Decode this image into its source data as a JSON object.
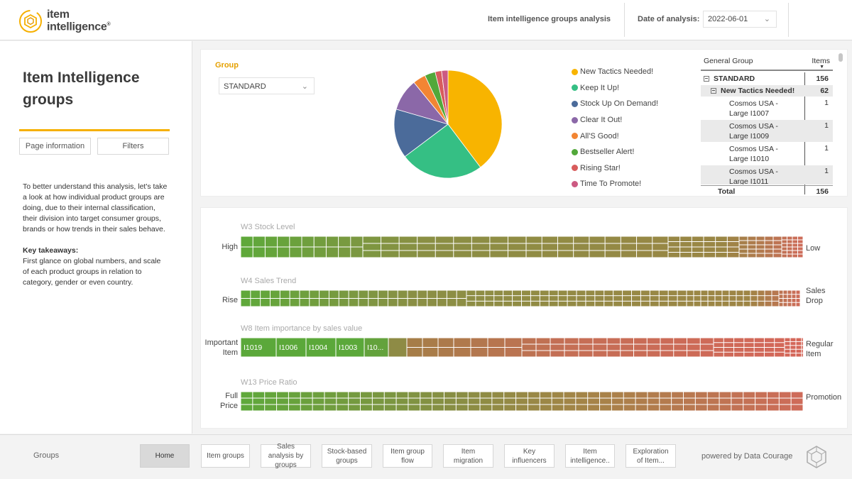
{
  "header": {
    "logo_line1": "item",
    "logo_line2": "intelligence",
    "logo_mark": "®",
    "report_title": "Item intelligence groups analysis",
    "date_label": "Date of analysis:",
    "date_value": "2022-06-01"
  },
  "left_panel": {
    "title": "Item Intelligence groups",
    "btn_page_info": "Page information",
    "btn_filters": "Filters",
    "description": "To better understand this analysis, let's take a look at how individual product groups are doing, due to their internal classification, their division into target consumer groups, brands or how trends in their sales behave.",
    "takeaways_title": "Key takeaways:",
    "takeaways_text": "First glance on global numbers, and scale of each product groups in relation to category, gender or even country."
  },
  "group_filter": {
    "label": "Group",
    "selected": "STANDARD"
  },
  "chart_data": {
    "type": "pie",
    "categories": [
      "New Tactics Needed!",
      "Keep It Up!",
      "Stock Up On Demand!",
      "Clear It Out!",
      "All'S Good!",
      "Bestseller Alert!",
      "Rising Star!",
      "Time To Promote!"
    ],
    "values": [
      62,
      39,
      23,
      15,
      6,
      5,
      3,
      3
    ],
    "colors": [
      "#f8b400",
      "#35bf84",
      "#4b6b9a",
      "#8b68a8",
      "#f28533",
      "#52a83a",
      "#d85c5c",
      "#cc5a82"
    ],
    "legend_placement": "right"
  },
  "matrix": {
    "col_group": "General Group",
    "col_items": "Items",
    "rows": [
      {
        "label": "STANDARD",
        "value": "156",
        "level": 0
      },
      {
        "label": "New Tactics Needed!",
        "value": "62",
        "level": 1
      },
      {
        "label": "Cosmos USA - Large I1007",
        "value": "1",
        "level": 2
      },
      {
        "label": "Cosmos USA - Large I1009",
        "value": "1",
        "level": 2
      },
      {
        "label": "Cosmos USA - Large I1010",
        "value": "1",
        "level": 2
      },
      {
        "label": "Cosmos USA - Large I1011",
        "value": "1",
        "level": 2
      }
    ],
    "total_label": "Total",
    "total_value": "156"
  },
  "treemaps": [
    {
      "title": "W3 Stock Level",
      "left": "High",
      "right": "Low"
    },
    {
      "title": "W4 Sales Trend",
      "left": "Rise",
      "right_l1": "Sales",
      "right_l2": "Drop"
    },
    {
      "title": "W8 Item importance by sales value",
      "left_l1": "Important",
      "left_l2": "Item",
      "right_l1": "Regular",
      "right_l2": "Item",
      "cells": [
        "I1019",
        "I1006",
        "I1004",
        "I1003",
        "I10..."
      ]
    },
    {
      "title": "W13 Price Ratio",
      "left_l1": "Full",
      "left_l2": "Price",
      "right": "Promotion"
    }
  ],
  "footer": {
    "section": "Groups",
    "nav": [
      "Home",
      "Item groups",
      "Sales analysis by groups",
      "Stock-based groups",
      "Item group flow",
      "Item migration",
      "Key influencers",
      "Item intelligence..",
      "Exploration of Item..."
    ],
    "powered": "powered by Data Courage"
  }
}
